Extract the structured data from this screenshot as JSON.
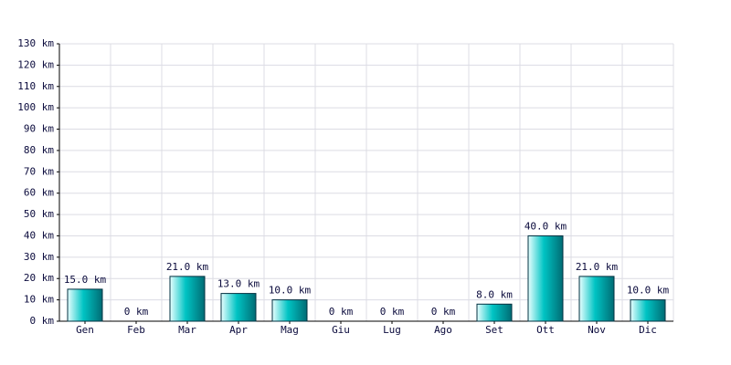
{
  "chart_data": {
    "type": "bar",
    "categories": [
      "Gen",
      "Feb",
      "Mar",
      "Apr",
      "Mag",
      "Giu",
      "Lug",
      "Ago",
      "Set",
      "Ott",
      "Nov",
      "Dic"
    ],
    "values": [
      15,
      0,
      21,
      13,
      10,
      0,
      0,
      0,
      8,
      40,
      21,
      10
    ],
    "value_labels": [
      "15.0 km",
      "0 km",
      "21.0 km",
      "13.0 km",
      "10.0 km",
      "0 km",
      "0 km",
      "0 km",
      "8.0 km",
      "40.0 km",
      "21.0 km",
      "10.0 km"
    ],
    "color": "#00c4c4",
    "ylim": [
      0,
      130
    ],
    "yticks": [
      {
        "value": 0,
        "label": "0 km"
      },
      {
        "value": 10,
        "label": "10 km"
      },
      {
        "value": 20,
        "label": "20 km"
      },
      {
        "value": 30,
        "label": "30 km"
      },
      {
        "value": 40,
        "label": "40 km"
      },
      {
        "value": 50,
        "label": "50 km"
      },
      {
        "value": 60,
        "label": "60 km"
      },
      {
        "value": 70,
        "label": "70 km"
      },
      {
        "value": 80,
        "label": "80 km"
      },
      {
        "value": 90,
        "label": "90 km"
      },
      {
        "value": 100,
        "label": "100 km"
      },
      {
        "value": 110,
        "label": "110 km"
      },
      {
        "value": 120,
        "label": "120 km"
      },
      {
        "value": 130,
        "label": "130 km"
      }
    ],
    "grid": true
  }
}
